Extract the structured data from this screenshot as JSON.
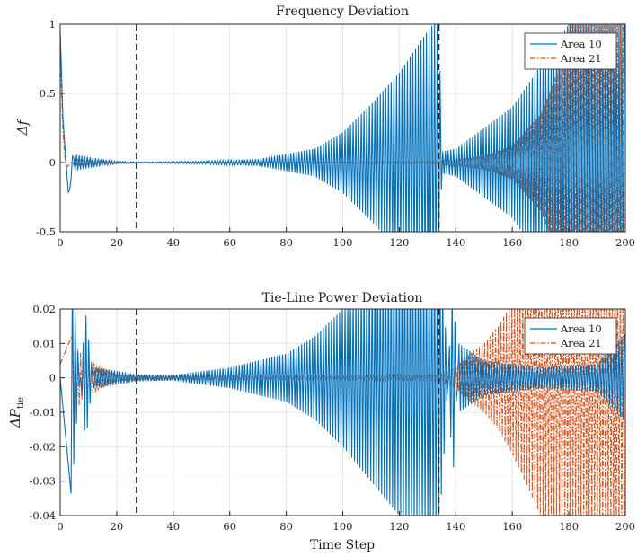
{
  "colors": {
    "area10": "#0072BD",
    "area21": "#D95319",
    "vline": "#222222"
  },
  "chart_data": [
    {
      "type": "line",
      "title": "Frequency Deviation",
      "xlabel": "",
      "ylabel": "Δf",
      "xlim": [
        0,
        200
      ],
      "ylim": [
        -0.5,
        1
      ],
      "xticks": [
        0,
        20,
        40,
        60,
        80,
        100,
        120,
        140,
        160,
        180,
        200
      ],
      "yticks": [
        -0.5,
        0,
        0.5,
        1
      ],
      "ytick_labels": [
        "-0.5",
        "0",
        "0.5",
        "1"
      ],
      "grid": true,
      "legend": "top-right",
      "vlines": [
        27,
        134
      ],
      "series": [
        {
          "name": "Area 10",
          "style": "solid",
          "envelope": [
            [
              0,
              0.95
            ],
            [
              1,
              0.3
            ],
            [
              2,
              0.02
            ],
            [
              3,
              -0.25
            ],
            [
              5,
              0.06
            ],
            [
              10,
              0.04
            ],
            [
              20,
              0.008
            ],
            [
              30,
              0.004
            ],
            [
              50,
              0.01
            ],
            [
              70,
              0.025
            ],
            [
              90,
              0.1
            ],
            [
              100,
              0.22
            ],
            [
              110,
              0.42
            ],
            [
              120,
              0.65
            ],
            [
              130,
              0.95
            ],
            [
              134,
              1.05
            ],
            [
              135,
              0.08
            ],
            [
              140,
              0.1
            ],
            [
              150,
              0.25
            ],
            [
              160,
              0.4
            ],
            [
              170,
              0.7
            ],
            [
              180,
              1.0
            ],
            [
              200,
              1.0
            ]
          ]
        },
        {
          "name": "Area 21",
          "style": "dashdot",
          "envelope": [
            [
              0,
              0.8
            ],
            [
              1,
              0.2
            ],
            [
              2,
              -0.04
            ],
            [
              5,
              0.02
            ],
            [
              15,
              0.008
            ],
            [
              30,
              0.002
            ],
            [
              100,
              0.003
            ],
            [
              134,
              0.008
            ],
            [
              140,
              0.02
            ],
            [
              150,
              0.05
            ],
            [
              160,
              0.12
            ],
            [
              170,
              0.35
            ],
            [
              175,
              0.6
            ],
            [
              180,
              1.0
            ],
            [
              200,
              1.0
            ]
          ]
        }
      ]
    },
    {
      "type": "line",
      "title": "Tie-Line Power Deviation",
      "xlabel": "Time Step",
      "ylabel": "ΔP",
      "ylabel_sub": "tie",
      "xlim": [
        0,
        200
      ],
      "ylim": [
        -0.04,
        0.02
      ],
      "xticks": [
        0,
        20,
        40,
        60,
        80,
        100,
        120,
        140,
        160,
        180,
        200
      ],
      "yticks": [
        -0.04,
        -0.03,
        -0.02,
        -0.01,
        0,
        0.01,
        0.02
      ],
      "ytick_labels": [
        "-0.04",
        "-0.03",
        "-0.02",
        "-0.01",
        "0",
        "0.01",
        "0.02"
      ],
      "grid": true,
      "legend": "top-right",
      "vlines": [
        27,
        134
      ],
      "series": [
        {
          "name": "Area 10",
          "style": "solid",
          "envelope": [
            [
              0,
              0.0
            ],
            [
              4,
              -0.035
            ],
            [
              7,
              0.002
            ],
            [
              9,
              -0.019
            ],
            [
              12,
              0.003
            ],
            [
              20,
              0.002
            ],
            [
              27,
              0.001
            ],
            [
              40,
              0.0008
            ],
            [
              60,
              0.003
            ],
            [
              80,
              0.007
            ],
            [
              90,
              0.012
            ],
            [
              100,
              0.02
            ],
            [
              110,
              0.03
            ],
            [
              120,
              0.04
            ],
            [
              134,
              0.045
            ],
            [
              136,
              0.02
            ],
            [
              139,
              -0.03
            ],
            [
              141,
              0.01
            ],
            [
              150,
              0.005
            ],
            [
              170,
              0.003
            ],
            [
              190,
              0.004
            ],
            [
              200,
              0.013
            ]
          ]
        },
        {
          "name": "Area 21",
          "style": "dashdot",
          "envelope": [
            [
              0,
              0.004
            ],
            [
              4,
              0.012
            ],
            [
              8,
              0.006
            ],
            [
              15,
              0.003
            ],
            [
              20,
              0.001
            ],
            [
              30,
              0.0004
            ],
            [
              100,
              0.0004
            ],
            [
              134,
              0.001
            ],
            [
              140,
              0.003
            ],
            [
              145,
              0.007
            ],
            [
              150,
              0.01
            ],
            [
              155,
              0.015
            ],
            [
              160,
              0.022
            ],
            [
              170,
              0.04
            ],
            [
              200,
              0.05
            ]
          ]
        }
      ]
    }
  ]
}
